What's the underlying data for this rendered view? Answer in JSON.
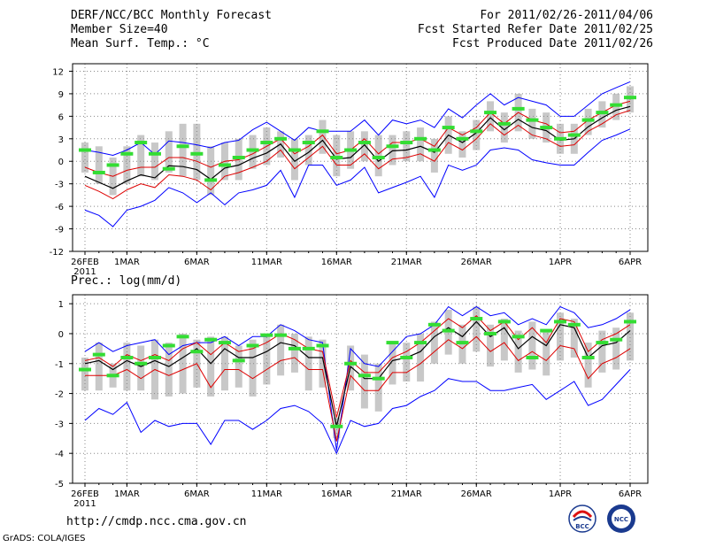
{
  "header": {
    "title": "DERF/NCC/BCC Monthly Forecast",
    "member": "Member Size=40",
    "variable": "Mean Surf. Temp.: °C",
    "period": "For 2011/02/26-2011/04/06",
    "started": "Fcst Started Refer Date 2011/02/25",
    "produced": "Fcst Produced Date 2011/02/26"
  },
  "footer": {
    "url": "http://cmdp.ncc.cma.gov.cn",
    "credit": "GrADS: COLA/IGES",
    "logo1": "BCC",
    "logo2": "NCC"
  },
  "colors": {
    "envelope": "#0000ff",
    "spread": "#dd0000",
    "mean": "#000000",
    "median": "#33dd33",
    "box": "#c8c8c8",
    "grid": "#888888"
  },
  "chart_data": [
    {
      "type": "line",
      "title": "Mean Surf. Temp.: °C",
      "x": [
        "26FEB 2011",
        "27FEB",
        "28FEB",
        "1MAR",
        "2MAR",
        "3MAR",
        "4MAR",
        "5MAR",
        "6MAR",
        "7MAR",
        "8MAR",
        "9MAR",
        "10MAR",
        "11MAR",
        "12MAR",
        "13MAR",
        "14MAR",
        "15MAR",
        "16MAR",
        "17MAR",
        "18MAR",
        "19MAR",
        "20MAR",
        "21MAR",
        "22MAR",
        "23MAR",
        "24MAR",
        "25MAR",
        "26MAR",
        "27MAR",
        "28MAR",
        "29MAR",
        "30MAR",
        "31MAR",
        "1APR",
        "2APR",
        "3APR",
        "4APR",
        "5APR",
        "6APR"
      ],
      "xtick_labels": [
        "26FEB",
        "1MAR",
        "6MAR",
        "11MAR",
        "16MAR",
        "21MAR",
        "26MAR",
        "1APR",
        "6APR"
      ],
      "xtick_year": "2011",
      "ylim": [
        -12,
        13
      ],
      "yticks": [
        -12,
        -9,
        -6,
        -3,
        0,
        3,
        6,
        9,
        12
      ],
      "series": [
        {
          "name": "max",
          "values": [
            1.5,
            1.2,
            0.8,
            1.5,
            2.5,
            0.9,
            2.7,
            2.5,
            2.2,
            1.8,
            2.5,
            2.8,
            4.2,
            5.2,
            4.0,
            2.8,
            4.5,
            4.0,
            4.0,
            4.0,
            5.5,
            3.5,
            5.5,
            5.0,
            5.5,
            4.5,
            7.0,
            5.8,
            7.5,
            9.0,
            7.5,
            8.5,
            8.0,
            7.5,
            6.0,
            6.0,
            7.5,
            9.0,
            9.8,
            10.6
          ]
        },
        {
          "name": "spread_upper",
          "values": [
            -0.8,
            -1.5,
            -2.0,
            -1.2,
            -0.8,
            -0.8,
            0.5,
            0.5,
            0.0,
            -0.8,
            0.0,
            0.2,
            1.0,
            2.0,
            3.0,
            1.0,
            2.0,
            3.5,
            1.0,
            1.5,
            3.0,
            1.0,
            2.5,
            2.5,
            3.0,
            2.0,
            4.5,
            3.5,
            4.5,
            6.5,
            5.0,
            6.5,
            5.5,
            5.0,
            3.8,
            4.0,
            5.5,
            6.5,
            7.5,
            8.0
          ]
        },
        {
          "name": "mean",
          "values": [
            -2.0,
            -2.8,
            -3.6,
            -2.6,
            -1.8,
            -2.2,
            -0.6,
            -0.7,
            -1.1,
            -2.4,
            -0.9,
            -0.5,
            0.4,
            1.1,
            2.3,
            0.0,
            1.2,
            2.8,
            0.3,
            0.5,
            2.2,
            0.0,
            1.4,
            1.5,
            2.0,
            1.2,
            3.5,
            2.5,
            3.8,
            5.8,
            4.2,
            5.6,
            4.5,
            4.1,
            2.8,
            3.0,
            4.6,
            5.8,
            6.8,
            7.3
          ]
        },
        {
          "name": "spread_lower",
          "values": [
            -3.2,
            -4.0,
            -5.0,
            -3.8,
            -3.0,
            -3.5,
            -1.8,
            -2.0,
            -2.5,
            -3.8,
            -2.0,
            -1.5,
            -0.8,
            0.0,
            1.5,
            -1.0,
            0.5,
            2.0,
            -0.5,
            -0.5,
            1.0,
            -1.0,
            0.3,
            0.5,
            1.0,
            0.0,
            2.5,
            1.5,
            3.0,
            5.0,
            3.5,
            4.8,
            3.5,
            3.0,
            2.0,
            2.2,
            4.0,
            5.0,
            6.2,
            6.8
          ]
        },
        {
          "name": "min",
          "values": [
            -6.5,
            -7.2,
            -8.7,
            -6.5,
            -6.0,
            -5.2,
            -3.5,
            -4.2,
            -5.5,
            -4.2,
            -5.8,
            -4.2,
            -3.8,
            -3.2,
            -1.2,
            -4.8,
            -0.5,
            -0.5,
            -3.2,
            -2.5,
            -0.8,
            -4.2,
            -3.5,
            -2.8,
            -2.0,
            -4.8,
            -0.5,
            -1.2,
            -0.5,
            1.5,
            1.8,
            1.5,
            0.2,
            -0.2,
            -0.5,
            -0.5,
            1.2,
            2.8,
            3.5,
            4.3
          ]
        },
        {
          "name": "median",
          "values": [
            1.5,
            -1.5,
            -0.5,
            1.0,
            2.5,
            1.0,
            -1.0,
            2.0,
            1.0,
            -2.5,
            -0.5,
            0.5,
            1.5,
            2.5,
            3.0,
            1.5,
            2.5,
            4.0,
            0.5,
            1.5,
            2.5,
            0.5,
            2.0,
            2.5,
            3.0,
            1.5,
            4.5,
            3.0,
            4.0,
            6.5,
            5.0,
            7.0,
            5.5,
            4.5,
            3.0,
            3.5,
            5.5,
            6.5,
            7.5,
            8.5
          ]
        },
        {
          "name": "box_high",
          "values": [
            2.5,
            2.0,
            0.5,
            2.0,
            3.5,
            2.5,
            4.0,
            5.0,
            5.0,
            2.0,
            2.5,
            3.0,
            3.5,
            4.5,
            4.0,
            3.0,
            3.5,
            5.5,
            3.5,
            4.0,
            4.0,
            3.5,
            3.5,
            4.0,
            4.5,
            3.0,
            6.0,
            4.0,
            5.5,
            8.0,
            6.5,
            9.0,
            7.0,
            6.5,
            5.0,
            5.0,
            7.0,
            8.0,
            9.0,
            10.0
          ]
        },
        {
          "name": "box_low",
          "values": [
            -1.5,
            -3.0,
            -4.5,
            -3.0,
            -2.0,
            -2.5,
            -1.5,
            -2.0,
            -2.5,
            -4.5,
            -2.5,
            -2.5,
            -1.0,
            -0.5,
            0.5,
            -2.5,
            -0.5,
            1.0,
            -2.0,
            -1.0,
            0.0,
            -2.0,
            -0.5,
            0.0,
            0.0,
            -1.5,
            1.0,
            0.5,
            1.5,
            4.0,
            2.5,
            4.0,
            3.0,
            2.5,
            1.0,
            1.0,
            3.5,
            4.5,
            5.5,
            6.5
          ]
        }
      ]
    },
    {
      "type": "line",
      "title": "Prec.: log(mm/d)",
      "x": [
        "26FEB 2011",
        "27FEB",
        "28FEB",
        "1MAR",
        "2MAR",
        "3MAR",
        "4MAR",
        "5MAR",
        "6MAR",
        "7MAR",
        "8MAR",
        "9MAR",
        "10MAR",
        "11MAR",
        "12MAR",
        "13MAR",
        "14MAR",
        "15MAR",
        "16MAR",
        "17MAR",
        "18MAR",
        "19MAR",
        "20MAR",
        "21MAR",
        "22MAR",
        "23MAR",
        "24MAR",
        "25MAR",
        "26MAR",
        "27MAR",
        "28MAR",
        "29MAR",
        "30MAR",
        "31MAR",
        "1APR",
        "2APR",
        "3APR",
        "4APR",
        "5APR",
        "6APR"
      ],
      "xtick_labels": [
        "26FEB",
        "1MAR",
        "6MAR",
        "11MAR",
        "16MAR",
        "21MAR",
        "26MAR",
        "1APR",
        "6APR"
      ],
      "xtick_year": "2011",
      "ylim": [
        -5,
        1.3
      ],
      "yticks": [
        -5,
        -4,
        -3,
        -2,
        -1,
        0,
        1
      ],
      "series": [
        {
          "name": "max",
          "values": [
            -0.6,
            -0.3,
            -0.6,
            -0.4,
            -0.3,
            -0.2,
            -0.7,
            -0.4,
            -0.3,
            -0.3,
            -0.1,
            -0.4,
            -0.1,
            -0.1,
            0.3,
            0.1,
            -0.2,
            -0.3,
            -3.9,
            -0.5,
            -1.0,
            -1.1,
            -0.6,
            -0.1,
            0.0,
            0.3,
            0.9,
            0.6,
            0.9,
            0.6,
            0.7,
            0.3,
            0.5,
            0.3,
            0.9,
            0.7,
            0.2,
            0.3,
            0.5,
            0.8
          ]
        },
        {
          "name": "spread_upper",
          "values": [
            -0.9,
            -0.8,
            -1.1,
            -0.7,
            -0.9,
            -0.7,
            -0.9,
            -0.5,
            -0.3,
            -0.7,
            -0.3,
            -0.6,
            -0.5,
            -0.3,
            0.0,
            -0.2,
            -0.5,
            -0.6,
            -2.8,
            -0.9,
            -1.3,
            -1.3,
            -0.8,
            -0.6,
            -0.3,
            0.1,
            0.5,
            0.2,
            0.6,
            0.1,
            0.4,
            -0.2,
            0.2,
            -0.3,
            0.5,
            0.4,
            -0.6,
            -0.2,
            0.0,
            0.3
          ]
        },
        {
          "name": "mean",
          "values": [
            -1.0,
            -0.9,
            -1.2,
            -0.9,
            -1.1,
            -0.9,
            -1.1,
            -0.8,
            -0.5,
            -1.0,
            -0.5,
            -0.8,
            -0.8,
            -0.6,
            -0.3,
            -0.4,
            -0.8,
            -0.8,
            -3.1,
            -1.1,
            -1.5,
            -1.5,
            -0.9,
            -0.8,
            -0.6,
            -0.1,
            0.2,
            -0.1,
            0.4,
            -0.1,
            0.2,
            -0.5,
            -0.1,
            -0.4,
            0.3,
            0.2,
            -0.8,
            -0.4,
            -0.3,
            0.1
          ]
        },
        {
          "name": "spread_lower",
          "values": [
            -1.4,
            -1.4,
            -1.4,
            -1.2,
            -1.5,
            -1.2,
            -1.4,
            -1.2,
            -1.0,
            -1.8,
            -1.2,
            -1.2,
            -1.5,
            -1.2,
            -0.9,
            -0.8,
            -1.2,
            -1.2,
            -3.6,
            -1.4,
            -1.9,
            -1.9,
            -1.3,
            -1.3,
            -1.0,
            -0.6,
            -0.2,
            -0.5,
            -0.1,
            -0.6,
            -0.3,
            -0.9,
            -0.6,
            -0.9,
            -0.4,
            -0.5,
            -1.5,
            -1.0,
            -0.8,
            -0.5
          ]
        },
        {
          "name": "min",
          "values": [
            -2.9,
            -2.5,
            -2.7,
            -2.3,
            -3.3,
            -2.9,
            -3.1,
            -3.0,
            -3.0,
            -3.7,
            -2.9,
            -2.9,
            -3.2,
            -2.9,
            -2.5,
            -2.4,
            -2.6,
            -3.0,
            -4.0,
            -2.9,
            -3.1,
            -3.0,
            -2.5,
            -2.4,
            -2.1,
            -1.9,
            -1.5,
            -1.6,
            -1.6,
            -1.9,
            -1.9,
            -1.8,
            -1.7,
            -2.2,
            -1.9,
            -1.6,
            -2.4,
            -2.2,
            -1.7,
            -1.2
          ]
        },
        {
          "name": "median",
          "values": [
            -1.2,
            -0.7,
            -1.4,
            -0.8,
            -1.0,
            -0.8,
            -0.4,
            -0.1,
            -0.6,
            -0.2,
            -0.3,
            -0.9,
            -0.4,
            -0.05,
            -0.05,
            -0.5,
            -0.5,
            -0.4,
            -3.1,
            -1.0,
            -1.4,
            -1.5,
            -0.3,
            -0.8,
            -0.3,
            0.3,
            0.1,
            -0.3,
            0.5,
            0.0,
            0.4,
            -0.1,
            -0.8,
            0.1,
            0.4,
            0.3,
            -0.8,
            -0.3,
            -0.2,
            0.4
          ]
        },
        {
          "name": "box_high",
          "values": [
            -0.8,
            -0.3,
            -1.0,
            -0.3,
            -0.4,
            -0.2,
            -0.3,
            0.0,
            -0.2,
            -0.1,
            -0.1,
            -0.4,
            -0.2,
            0.0,
            0.3,
            0.0,
            -0.1,
            -0.2,
            -2.8,
            -0.4,
            -0.7,
            -1.0,
            -0.3,
            -0.3,
            0.0,
            0.4,
            0.8,
            0.3,
            0.9,
            0.3,
            0.5,
            0.1,
            0.4,
            0.1,
            0.7,
            0.5,
            -0.3,
            0.1,
            0.2,
            0.7
          ]
        },
        {
          "name": "box_low",
          "values": [
            -1.9,
            -1.9,
            -1.8,
            -1.9,
            -1.9,
            -2.2,
            -2.1,
            -2.0,
            -1.8,
            -2.1,
            -1.9,
            -1.8,
            -2.1,
            -1.7,
            -1.4,
            -1.3,
            -1.9,
            -1.8,
            -3.5,
            -1.9,
            -2.5,
            -2.6,
            -1.7,
            -1.6,
            -1.6,
            -1.0,
            -0.7,
            -1.0,
            -0.6,
            -1.1,
            -0.9,
            -1.3,
            -1.2,
            -1.4,
            -0.9,
            -0.8,
            -1.8,
            -1.3,
            -1.2,
            -0.9
          ]
        }
      ]
    }
  ]
}
